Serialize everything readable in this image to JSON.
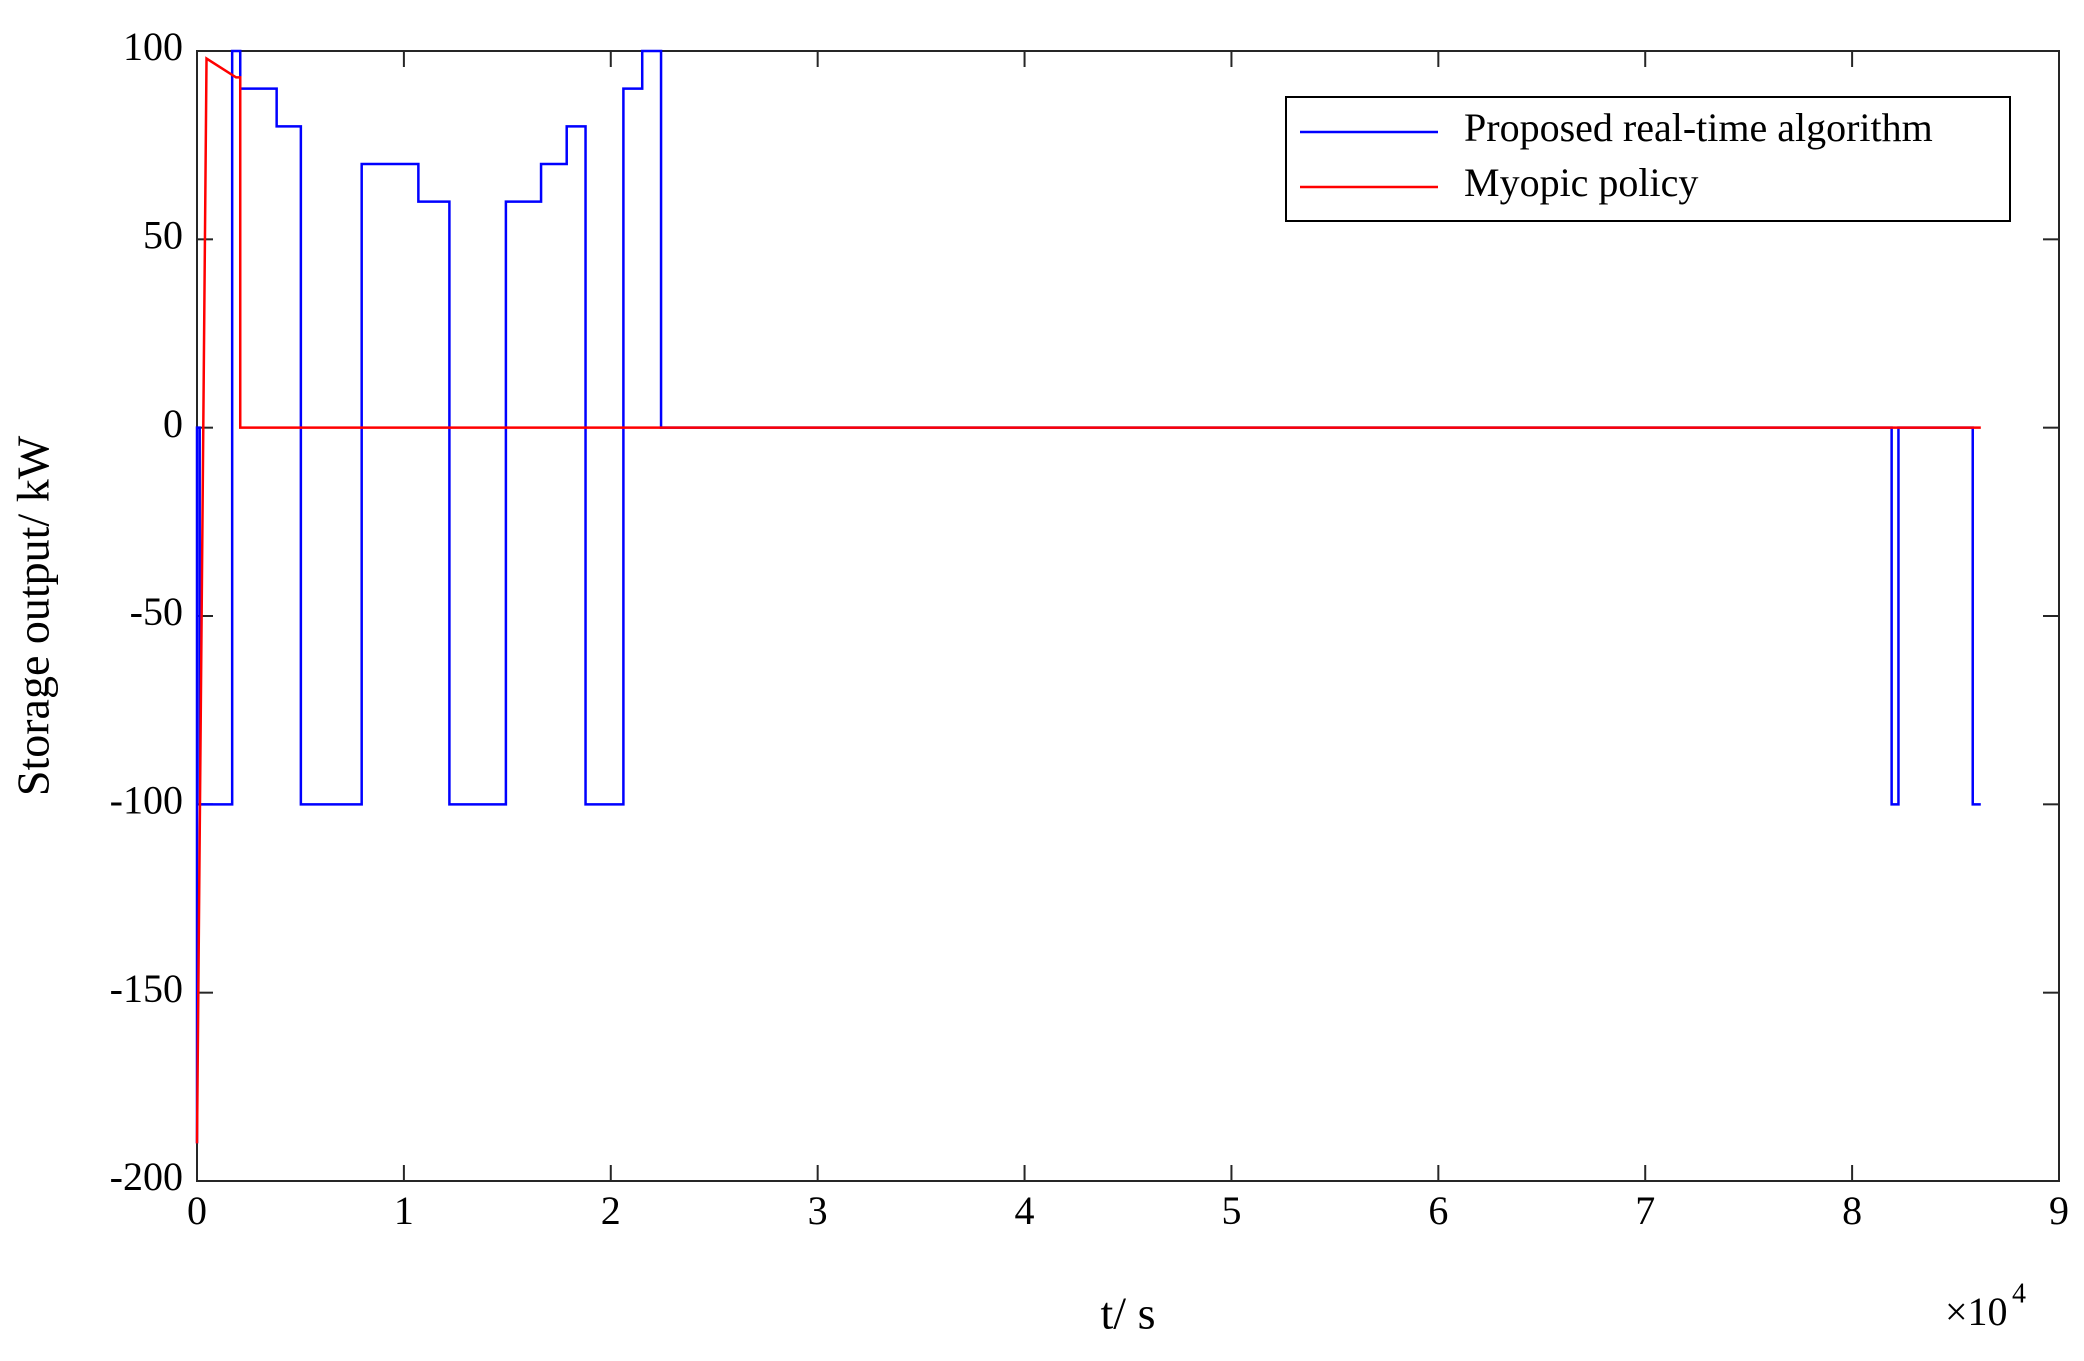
{
  "chart_data": {
    "type": "line",
    "x_label": "t/ s",
    "y_label": "Storage output/ kW",
    "x_multiplier": "×10",
    "x_multiplier_exponent": "4",
    "xlim": [
      0,
      90000
    ],
    "ylim": [
      -200,
      100
    ],
    "xticks": [
      0,
      {
        "value": 10000,
        "label": "1"
      },
      {
        "value": 20000,
        "label": "2"
      },
      {
        "value": 30000,
        "label": "3"
      },
      {
        "value": 40000,
        "label": "4"
      },
      {
        "value": 50000,
        "label": "5"
      },
      {
        "value": 60000,
        "label": "6"
      },
      {
        "value": 70000,
        "label": "7"
      },
      {
        "value": 80000,
        "label": "8"
      },
      {
        "value": 90000,
        "label": "9"
      }
    ],
    "yticks": [
      -200,
      -150,
      -100,
      -50,
      0,
      50,
      100
    ],
    "grid": false,
    "legend": "northeast",
    "series": [
      {
        "name": "Proposed real-time algorithm",
        "color": "#0000ff",
        "x": [
          0,
          0,
          130,
          130,
          1700,
          1700,
          2090,
          2090,
          3850,
          3850,
          5020,
          5020,
          7960,
          7960,
          10700,
          10700,
          12200,
          12200,
          14930,
          14930,
          16630,
          16630,
          17870,
          17870,
          18780,
          18780,
          20610,
          20610,
          21520,
          21520,
          22430,
          22430,
          81910,
          81910,
          82240,
          82240,
          85830,
          85830,
          86220
        ],
        "values": [
          -190,
          0,
          0,
          -100,
          -100,
          100,
          100,
          90,
          90,
          80,
          80,
          -100,
          -100,
          70,
          70,
          60,
          60,
          -100,
          -100,
          60,
          60,
          70,
          70,
          80,
          80,
          -100,
          -100,
          90,
          90,
          100,
          100,
          0,
          0,
          -100,
          -100,
          0,
          0,
          -100,
          -100
        ]
      },
      {
        "name": "Myopic policy",
        "color": "#ff0000",
        "x": [
          0,
          460,
          1890,
          2090,
          2090,
          86220
        ],
        "values": [
          -190,
          98,
          93,
          93,
          0,
          0
        ]
      }
    ]
  }
}
